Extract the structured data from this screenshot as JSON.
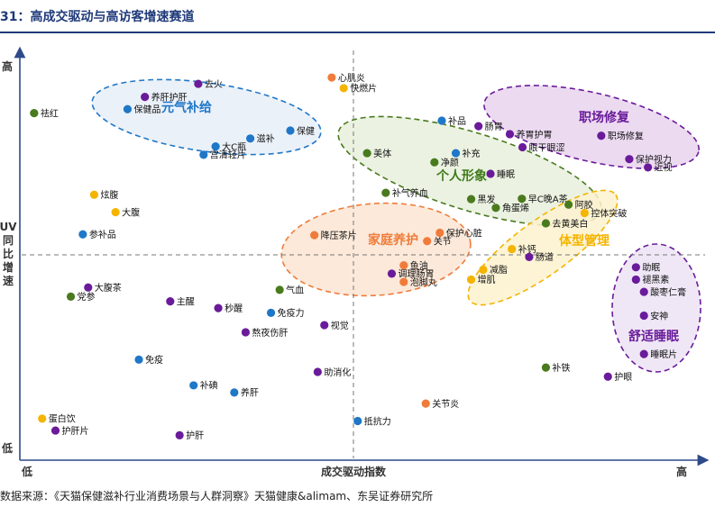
{
  "figure": {
    "title": "31：高成交驱动与高访客增速赛道",
    "source": "数据来源：《天猫保健滋补行业消费场景与人群洞察》天猫健康&alimam、东吴证券研究所"
  },
  "chart_data": {
    "type": "scatter",
    "xlabel": "成交驱动指数",
    "ylabel": "UV同比增速",
    "x_low_label": "低",
    "x_high_label": "高",
    "y_low_label": "低",
    "y_high_label": "高",
    "xlim": [
      0,
      100
    ],
    "ylim": [
      0,
      100
    ],
    "grid": false,
    "colors": {
      "blue": "#1f77c8",
      "purple": "#6a1b9a",
      "green": "#4a7a1e",
      "yellow": "#f4b400",
      "orange": "#ef7c3a",
      "axis": "#2d4a8a"
    },
    "clusters": [
      {
        "name": "元气补给",
        "color": "#1f77c8",
        "fill": "#e8eef8",
        "text_color": "#1f77c8"
      },
      {
        "name": "职场修复",
        "color": "#6a1b9a",
        "fill": "#e9d3ef",
        "text_color": "#6a1b9a"
      },
      {
        "name": "个人形象",
        "color": "#4a7a1e",
        "fill": "#e7f0dc",
        "text_color": "#3f7a1b"
      },
      {
        "name": "体型管理",
        "color": "#f4b400",
        "fill": "#fdf2cf",
        "text_color": "#f4b400"
      },
      {
        "name": "家庭养护",
        "color": "#ef7c3a",
        "fill": "#fbe5d3",
        "text_color": "#ef7c3a"
      },
      {
        "name": "舒适睡眠",
        "color": "#6a1b9a",
        "fill": "#ece3f4",
        "text_color": "#6a1b9a"
      }
    ],
    "points": [
      {
        "label": "养肝护肝",
        "color": "purple",
        "x": 18.2,
        "y": 91.0
      },
      {
        "label": "去火",
        "color": "purple",
        "x": 26.2,
        "y": 94.3
      },
      {
        "label": "祛红",
        "color": "green",
        "x": 1.6,
        "y": 86.9
      },
      {
        "label": "保健品",
        "color": "blue",
        "x": 15.6,
        "y": 87.9
      },
      {
        "label": "保健",
        "color": "blue",
        "x": 40.0,
        "y": 82.5
      },
      {
        "label": "滋补",
        "color": "blue",
        "x": 34.0,
        "y": 80.5
      },
      {
        "label": "大C瓶",
        "color": "blue",
        "x": 28.8,
        "y": 78.5
      },
      {
        "label": "宫清轻片",
        "color": "blue",
        "x": 27.0,
        "y": 76.4
      },
      {
        "label": "心肌炎",
        "color": "orange",
        "x": 46.2,
        "y": 95.9
      },
      {
        "label": "快燃片",
        "color": "yellow",
        "x": 48.0,
        "y": 93.2
      },
      {
        "label": "补品",
        "color": "blue",
        "x": 62.7,
        "y": 85.0
      },
      {
        "label": "肠胃",
        "color": "purple",
        "x": 68.2,
        "y": 83.6
      },
      {
        "label": "养胃护胃",
        "color": "purple",
        "x": 72.9,
        "y": 81.6
      },
      {
        "label": "职场修复",
        "color": "purple",
        "x": 86.6,
        "y": 81.2
      },
      {
        "label": "眼干眼涩",
        "color": "purple",
        "x": 74.8,
        "y": 78.3
      },
      {
        "label": "保护视力",
        "color": "purple",
        "x": 90.8,
        "y": 75.3
      },
      {
        "label": "近视",
        "color": "purple",
        "x": 93.6,
        "y": 73.2
      },
      {
        "label": "美体",
        "color": "green",
        "x": 51.5,
        "y": 76.8
      },
      {
        "label": "补充",
        "color": "blue",
        "x": 64.8,
        "y": 76.8
      },
      {
        "label": "净颜",
        "color": "green",
        "x": 61.6,
        "y": 74.5
      },
      {
        "label": "睡眠",
        "color": "purple",
        "x": 70.0,
        "y": 71.6
      },
      {
        "label": "补气养血",
        "color": "green",
        "x": 54.3,
        "y": 66.8
      },
      {
        "label": "黑发",
        "color": "green",
        "x": 67.1,
        "y": 65.2
      },
      {
        "label": "早C晚A茶",
        "color": "green",
        "x": 74.7,
        "y": 65.3
      },
      {
        "label": "角蛋烯",
        "color": "green",
        "x": 70.8,
        "y": 63.0
      },
      {
        "label": "阿胶",
        "color": "green",
        "x": 81.7,
        "y": 63.8
      },
      {
        "label": "控体突破",
        "color": "yellow",
        "x": 84.1,
        "y": 61.7
      },
      {
        "label": "去黄美白",
        "color": "green",
        "x": 78.3,
        "y": 59.1
      },
      {
        "label": "炫腹",
        "color": "yellow",
        "x": 10.6,
        "y": 66.3
      },
      {
        "label": "大腹",
        "color": "yellow",
        "x": 13.8,
        "y": 61.9
      },
      {
        "label": "参补品",
        "color": "blue",
        "x": 8.9,
        "y": 56.3
      },
      {
        "label": "降压茶片",
        "color": "orange",
        "x": 43.6,
        "y": 56.1
      },
      {
        "label": "保护心脏",
        "color": "orange",
        "x": 62.4,
        "y": 56.7
      },
      {
        "label": "关节",
        "color": "orange",
        "x": 60.5,
        "y": 54.6
      },
      {
        "label": "补钙",
        "color": "yellow",
        "x": 73.2,
        "y": 52.6
      },
      {
        "label": "肠道",
        "color": "purple",
        "x": 75.8,
        "y": 50.6
      },
      {
        "label": "鱼油",
        "color": "orange",
        "x": 57.0,
        "y": 48.5
      },
      {
        "label": "调理肠胃",
        "color": "purple",
        "x": 55.2,
        "y": 46.4
      },
      {
        "label": "泡脚丸",
        "color": "orange",
        "x": 57.0,
        "y": 44.3
      },
      {
        "label": "减脂",
        "color": "yellow",
        "x": 68.9,
        "y": 47.4
      },
      {
        "label": "增肌",
        "color": "yellow",
        "x": 67.1,
        "y": 44.9
      },
      {
        "label": "助眠",
        "color": "purple",
        "x": 91.8,
        "y": 48.0
      },
      {
        "label": "褪黑素",
        "color": "purple",
        "x": 91.8,
        "y": 44.9
      },
      {
        "label": "酸枣仁膏",
        "color": "purple",
        "x": 93.0,
        "y": 41.8
      },
      {
        "label": "安神",
        "color": "purple",
        "x": 93.0,
        "y": 35.8
      },
      {
        "label": "睡眠片",
        "color": "purple",
        "x": 93.0,
        "y": 26.1
      },
      {
        "label": "大腹茶",
        "color": "purple",
        "x": 9.7,
        "y": 42.9
      },
      {
        "label": "党参",
        "color": "green",
        "x": 7.1,
        "y": 40.6
      },
      {
        "label": "主醒",
        "color": "purple",
        "x": 22.0,
        "y": 39.4
      },
      {
        "label": "秒醒",
        "color": "purple",
        "x": 29.2,
        "y": 37.7
      },
      {
        "label": "气血",
        "color": "green",
        "x": 38.4,
        "y": 42.3
      },
      {
        "label": "免疫力",
        "color": "blue",
        "x": 37.1,
        "y": 36.5
      },
      {
        "label": "熬夜伤肝",
        "color": "purple",
        "x": 33.3,
        "y": 31.6
      },
      {
        "label": "视觉",
        "color": "purple",
        "x": 45.1,
        "y": 33.4
      },
      {
        "label": "免疫",
        "color": "blue",
        "x": 17.3,
        "y": 24.7
      },
      {
        "label": "助消化",
        "color": "purple",
        "x": 44.1,
        "y": 21.6
      },
      {
        "label": "补碘",
        "color": "blue",
        "x": 25.5,
        "y": 18.2
      },
      {
        "label": "养肝",
        "color": "blue",
        "x": 31.6,
        "y": 16.4
      },
      {
        "label": "补铁",
        "color": "green",
        "x": 78.3,
        "y": 22.7
      },
      {
        "label": "护眼",
        "color": "purple",
        "x": 87.6,
        "y": 20.4
      },
      {
        "label": "关节炎",
        "color": "orange",
        "x": 60.3,
        "y": 13.6
      },
      {
        "label": "抵抗力",
        "color": "blue",
        "x": 50.1,
        "y": 9.2
      },
      {
        "label": "蛋白饮",
        "color": "yellow",
        "x": 2.8,
        "y": 9.8
      },
      {
        "label": "护肝片",
        "color": "purple",
        "x": 4.8,
        "y": 6.8
      },
      {
        "label": "护肝",
        "color": "purple",
        "x": 23.4,
        "y": 5.6
      }
    ]
  }
}
